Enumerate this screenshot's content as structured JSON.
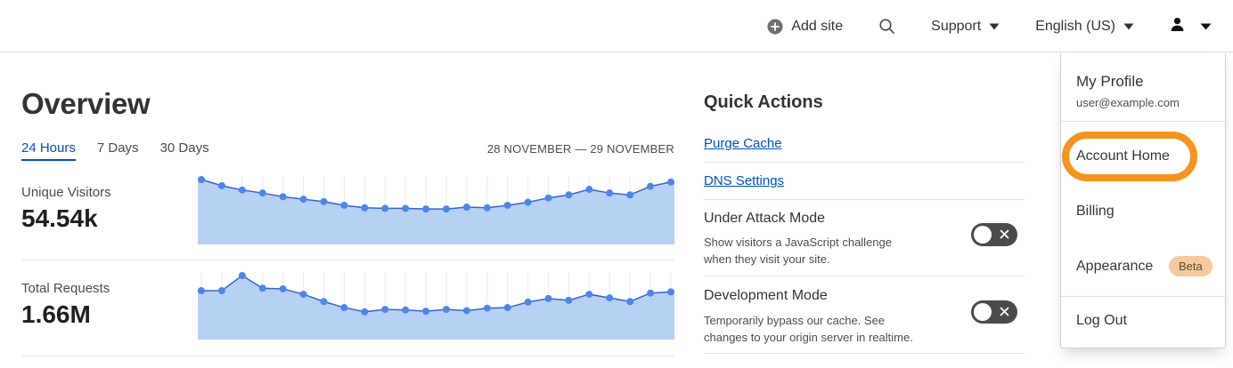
{
  "nav": {
    "add_site_label": "Add site",
    "support_label": "Support",
    "language_label": "English (US)"
  },
  "overview": {
    "title": "Overview",
    "tabs": [
      {
        "label": "24 Hours",
        "active": true
      },
      {
        "label": "7 Days",
        "active": false
      },
      {
        "label": "30 Days",
        "active": false
      }
    ],
    "date_range": "28 NOVEMBER — 29 NOVEMBER"
  },
  "stats": [
    {
      "label": "Unique Visitors",
      "value": "54.54k"
    },
    {
      "label": "Total Requests",
      "value": "1.66M"
    }
  ],
  "chart_data": [
    {
      "type": "area",
      "title": "Unique Visitors",
      "metric_total": "54.54k",
      "time_range": "28 NOVEMBER — 29 NOVEMBER",
      "axis_labels_shown": false,
      "grid": "vertical-only",
      "points_normalized": [
        1.0,
        0.9,
        0.83,
        0.78,
        0.72,
        0.68,
        0.64,
        0.58,
        0.54,
        0.53,
        0.53,
        0.52,
        0.52,
        0.55,
        0.54,
        0.58,
        0.63,
        0.7,
        0.75,
        0.84,
        0.78,
        0.75,
        0.89,
        0.96
      ],
      "grid_color": "#eaeaea",
      "fill_color": "#b7d1f4",
      "line_color": "#3465c4",
      "dot_color": "#4c86ea"
    },
    {
      "type": "area",
      "title": "Total Requests",
      "metric_total": "1.66M",
      "time_range": "28 NOVEMBER — 29 NOVEMBER",
      "axis_labels_shown": false,
      "grid": "vertical-only",
      "points_normalized": [
        0.75,
        0.75,
        1.0,
        0.79,
        0.78,
        0.69,
        0.57,
        0.47,
        0.4,
        0.44,
        0.43,
        0.41,
        0.44,
        0.42,
        0.46,
        0.47,
        0.56,
        0.62,
        0.59,
        0.69,
        0.63,
        0.57,
        0.71,
        0.73
      ],
      "grid_color": "#eaeaea",
      "fill_color": "#b7d1f4",
      "line_color": "#3465c4",
      "dot_color": "#4c86ea"
    }
  ],
  "quick_actions": {
    "title": "Quick Actions",
    "links": [
      {
        "label": "Purge Cache"
      },
      {
        "label": "DNS Settings"
      }
    ],
    "toggles": [
      {
        "title": "Under Attack Mode",
        "description": "Show visitors a JavaScript challenge\nwhen they visit your site.",
        "state": "off"
      },
      {
        "title": "Development Mode",
        "description": "Temporarily bypass our cache. See\nchanges to your origin server in realtime.",
        "state": "off"
      }
    ]
  },
  "user_menu": {
    "profile_name": "My Profile",
    "email": "user@example.com",
    "items": [
      {
        "label": "Account Home",
        "highlighted": true
      },
      {
        "label": "Billing"
      },
      {
        "label": "Appearance",
        "badge": "Beta"
      }
    ],
    "logout_label": "Log Out",
    "beta_badge": "Beta"
  },
  "colors": {
    "link_blue": "#0051c3",
    "highlight_orange": "#f6931d",
    "toggle_off_bg": "#4b4b4b",
    "beta_badge_bg": "#f8c99d",
    "beta_badge_text": "#594a33",
    "chart_fill": "#b7d1f4",
    "chart_line": "#3465c4"
  }
}
